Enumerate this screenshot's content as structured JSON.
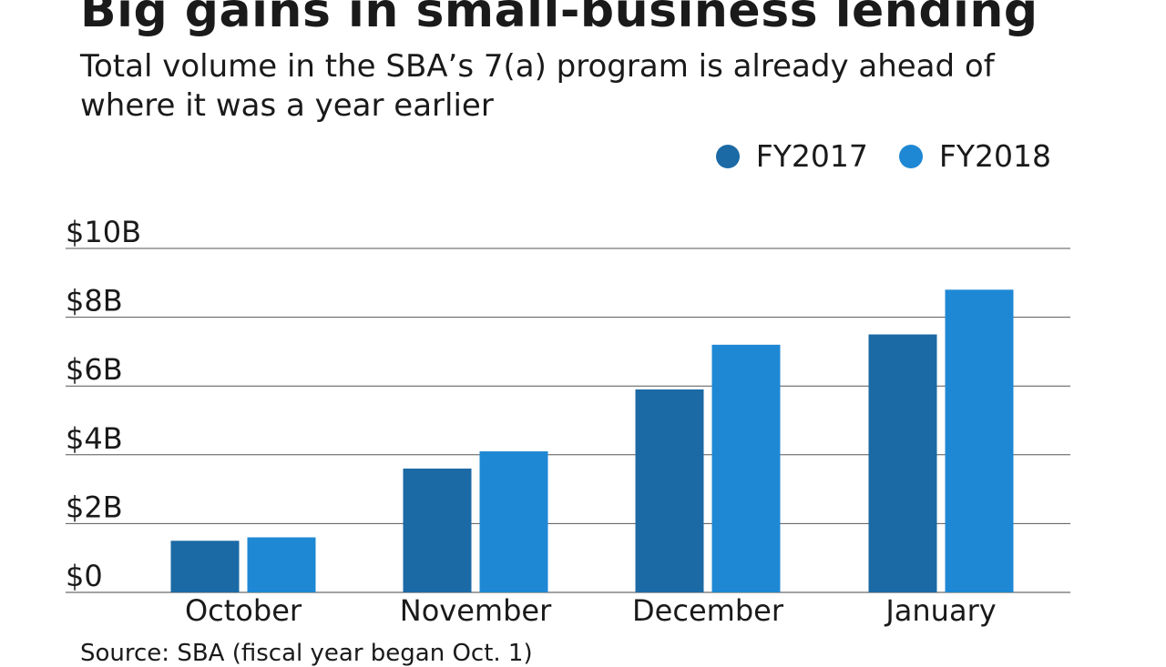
{
  "header": {
    "title": "Big gains in small-business lending",
    "subtitle": "Total volume in the SBA’s 7(a) program is already ahead of where it was a year earlier"
  },
  "legend": {
    "items": [
      {
        "label": "FY2017",
        "color": "#1b6aa5"
      },
      {
        "label": "FY2018",
        "color": "#1f88d4"
      }
    ]
  },
  "footer": {
    "source": "Source: SBA (fiscal year began Oct. 1)"
  },
  "chart_data": {
    "type": "bar",
    "categories": [
      "October",
      "November",
      "December",
      "January"
    ],
    "series": [
      {
        "name": "FY2017",
        "values": [
          1.5,
          3.6,
          5.9,
          7.5
        ],
        "color": "#1b6aa5"
      },
      {
        "name": "FY2018",
        "values": [
          1.6,
          4.1,
          7.2,
          8.8
        ],
        "color": "#1f88d4"
      }
    ],
    "y_ticks": [
      0,
      2,
      4,
      6,
      8,
      10
    ],
    "y_tick_labels": [
      "$0",
      "$2B",
      "$4B",
      "$6B",
      "$8B",
      "$10B"
    ],
    "ylim": [
      0,
      10
    ],
    "ylabel": "",
    "xlabel": "",
    "grid": true,
    "legend_position": "top-right"
  }
}
